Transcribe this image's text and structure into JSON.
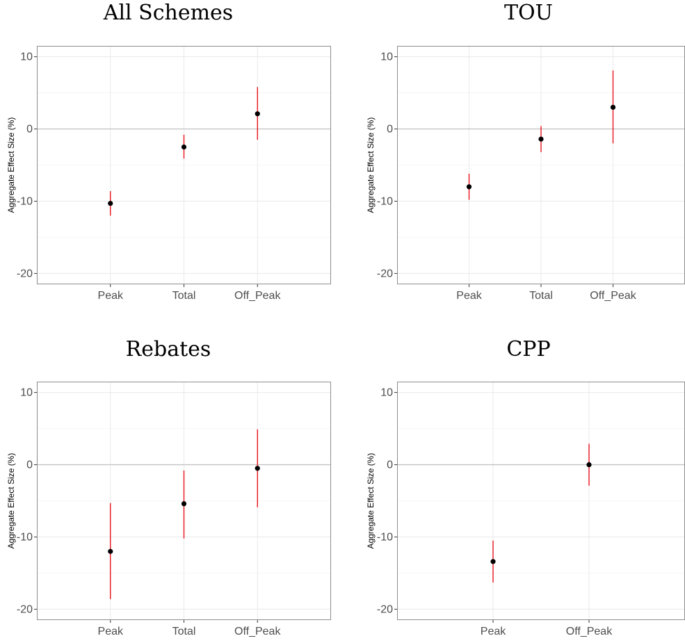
{
  "colors": {
    "error_bar": "#e8000b",
    "point": "#000000",
    "panel_border": "#8c8c8c",
    "grid_major": "#ebebeb",
    "grid_minor": "#f4f4f4",
    "zero_line": "#bfbfbf"
  },
  "chart_data": [
    {
      "type": "scatter",
      "title": "All Schemes",
      "ylabel": "Aggregate Effect Size (%)",
      "categories": [
        "Peak",
        "Total",
        "Off_Peak"
      ],
      "values": [
        -10.3,
        -2.5,
        2.1
      ],
      "lower": [
        -12.0,
        -4.1,
        -1.5
      ],
      "upper": [
        -8.6,
        -0.8,
        5.8
      ],
      "yticks": [
        10,
        0,
        -10,
        -20
      ],
      "ylim": [
        -21.5,
        11.5
      ],
      "grid": true,
      "hline": 0
    },
    {
      "type": "scatter",
      "title": "TOU",
      "ylabel": "Aggregate Effect Size (%)",
      "categories": [
        "Peak",
        "Total",
        "Off_Peak"
      ],
      "values": [
        -8.0,
        -1.4,
        3.0
      ],
      "lower": [
        -9.8,
        -3.2,
        -2.0
      ],
      "upper": [
        -6.2,
        0.4,
        8.1
      ],
      "yticks": [
        10,
        0,
        -10,
        -20
      ],
      "ylim": [
        -21.5,
        11.5
      ],
      "grid": true,
      "hline": 0
    },
    {
      "type": "scatter",
      "title": "Rebates",
      "ylabel": "Aggregate Effect Size (%)",
      "categories": [
        "Peak",
        "Total",
        "Off_Peak"
      ],
      "values": [
        -12.0,
        -5.4,
        -0.5
      ],
      "lower": [
        -18.6,
        -10.2,
        -5.9
      ],
      "upper": [
        -5.3,
        -0.8,
        4.9
      ],
      "yticks": [
        10,
        0,
        -10,
        -20
      ],
      "ylim": [
        -21.5,
        11.5
      ],
      "grid": true,
      "hline": 0
    },
    {
      "type": "scatter",
      "title": "CPP",
      "ylabel": "Aggregate Effect Size (%)",
      "categories": [
        "Peak",
        "Off_Peak"
      ],
      "values": [
        -13.4,
        0.0
      ],
      "lower": [
        -16.3,
        -2.9
      ],
      "upper": [
        -10.5,
        2.9
      ],
      "yticks": [
        10,
        0,
        -10,
        -20
      ],
      "ylim": [
        -21.5,
        11.5
      ],
      "grid": true,
      "hline": 0
    }
  ]
}
